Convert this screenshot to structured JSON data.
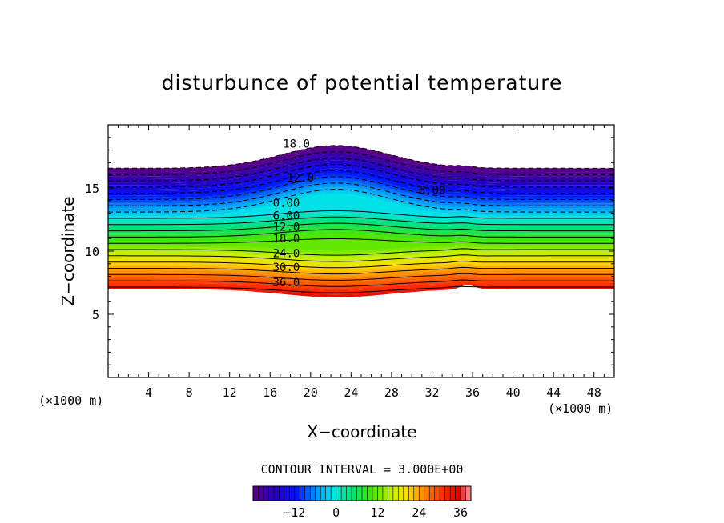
{
  "chart_data": {
    "type": "contour",
    "title": "disturbunce of potential temperature",
    "xlabel": "X−coordinate",
    "ylabel": "Z−coordinate",
    "x_unit": "(×1000 m)",
    "y_unit": "(×1000 m)",
    "xlim": [
      0,
      50
    ],
    "ylim": [
      0,
      20
    ],
    "x_ticks": [
      4,
      8,
      12,
      16,
      20,
      24,
      28,
      32,
      36,
      40,
      44,
      48
    ],
    "x_tick_labels": [
      "4",
      "8",
      "12",
      "16",
      "20",
      "24",
      "28",
      "32",
      "36",
      "40",
      "44",
      "48"
    ],
    "y_ticks": [
      5,
      10,
      15
    ],
    "y_tick_labels": [
      "5",
      "10",
      "15"
    ],
    "contour_interval_label": "CONTOUR INTERVAL = 3.000E+00",
    "contour_interval": 3,
    "value_range": [
      -24,
      39
    ],
    "contour_labels": [
      {
        "text": "18.0",
        "x": 18.6,
        "z": 18.4
      },
      {
        "text": "12.0",
        "x": 19.0,
        "z": 15.7
      },
      {
        "text": "6.00",
        "x": 32.0,
        "z": 14.7
      },
      {
        "text": "0.00",
        "x": 17.6,
        "z": 13.7
      },
      {
        "text": "6.00",
        "x": 17.6,
        "z": 12.7
      },
      {
        "text": "12.0",
        "x": 17.6,
        "z": 11.8
      },
      {
        "text": "18.0",
        "x": 17.6,
        "z": 10.9
      },
      {
        "text": "24.0",
        "x": 17.6,
        "z": 9.7
      },
      {
        "text": "30.0",
        "x": 17.6,
        "z": 8.6
      },
      {
        "text": "36.0",
        "x": 17.6,
        "z": 7.4
      }
    ],
    "colorbar": {
      "tick_labels": [
        "−12",
        "0",
        "12",
        "24",
        "36"
      ],
      "tick_values": [
        -12,
        0,
        12,
        24,
        36
      ]
    }
  }
}
